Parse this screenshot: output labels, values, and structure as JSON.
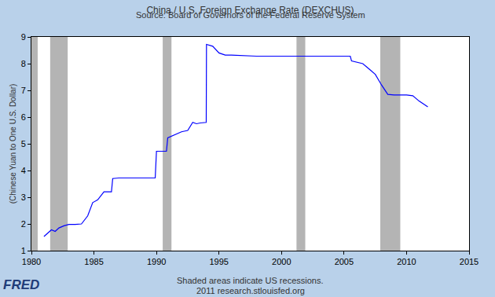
{
  "chart_data": {
    "type": "line",
    "title": "China / U.S. Foreign Exchange Rate (DEXCHUS)",
    "subtitle": "Source: Board of Governors of the Federal Reserve System",
    "y_label": "(Chinese Yuan to One U.S. Dollar)",
    "x": [
      1981.0,
      1981.3,
      1981.6,
      1981.9,
      1982.2,
      1982.6,
      1983.0,
      1983.5,
      1984.0,
      1984.5,
      1984.9,
      1985.3,
      1985.8,
      1986.4,
      1986.5,
      1987.0,
      1988.0,
      1989.0,
      1989.9,
      1990.0,
      1990.8,
      1990.9,
      1991.5,
      1992.0,
      1992.5,
      1992.9,
      1993.2,
      1993.5,
      1993.98,
      1994.0,
      1994.5,
      1995.0,
      1995.5,
      1996.0,
      1998.0,
      2000.0,
      2002.0,
      2004.0,
      2005.5,
      2005.6,
      2006.5,
      2007.0,
      2007.5,
      2008.0,
      2008.5,
      2009.0,
      2010.0,
      2010.5,
      2011.0,
      2011.7
    ],
    "values": [
      1.53,
      1.65,
      1.78,
      1.72,
      1.85,
      1.93,
      1.98,
      1.98,
      2.0,
      2.3,
      2.8,
      2.9,
      3.2,
      3.2,
      3.7,
      3.72,
      3.72,
      3.72,
      3.72,
      4.72,
      4.72,
      5.22,
      5.35,
      5.45,
      5.5,
      5.8,
      5.75,
      5.78,
      5.8,
      8.72,
      8.65,
      8.4,
      8.32,
      8.32,
      8.28,
      8.28,
      8.28,
      8.28,
      8.28,
      8.1,
      8.0,
      7.8,
      7.6,
      7.2,
      6.85,
      6.83,
      6.83,
      6.8,
      6.6,
      6.38
    ],
    "color": "#0000ff",
    "xlim": [
      1980,
      2015
    ],
    "ylim": [
      1,
      9
    ],
    "xticks": [
      1980,
      1985,
      1990,
      1995,
      2000,
      2005,
      2010,
      2015
    ],
    "yticks": [
      1,
      2,
      3,
      4,
      5,
      6,
      7,
      8,
      9
    ],
    "grid": false,
    "recessions": [
      [
        1980.0,
        1980.5
      ],
      [
        1981.5,
        1982.9
      ],
      [
        1990.5,
        1991.2
      ],
      [
        2001.2,
        2001.9
      ],
      [
        2007.9,
        2009.5
      ]
    ],
    "annotations": [
      "Shaded areas indicate US recessions.",
      "2011 research.stlouisfed.org"
    ],
    "logo": "FRED"
  }
}
